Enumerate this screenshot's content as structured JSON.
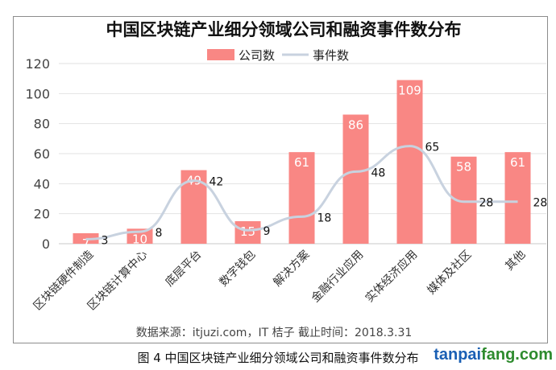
{
  "chart_data": {
    "type": "bar",
    "title": "中国区块链产业细分领域公司和融资事件数分布",
    "categories": [
      "区块链硬件制造",
      "区块链计算中心",
      "底层平台",
      "数字钱包",
      "解决方案",
      "金融行业应用",
      "实体经济应用",
      "媒体及社区",
      "其他"
    ],
    "series": [
      {
        "name": "公司数",
        "kind": "bar",
        "color": "#f98784",
        "values": [
          7,
          10,
          49,
          15,
          61,
          86,
          109,
          58,
          61
        ]
      },
      {
        "name": "事件数",
        "kind": "line",
        "color": "#c8d2df",
        "values": [
          3,
          8,
          42,
          9,
          18,
          48,
          65,
          28,
          28
        ]
      }
    ],
    "ylim": [
      0,
      120
    ],
    "yticks": [
      0,
      20,
      40,
      60,
      80,
      100,
      120
    ],
    "grid": true,
    "legend": "top-center",
    "source_note": "数据来源：itjuzi.com，IT 桔子        截止时间：2018.3.31"
  },
  "caption": "图 4  中国区块链产业细分领域公司和融资事件数分布",
  "brand": {
    "prefix": "tanpai",
    "suffix": "fang.com"
  }
}
